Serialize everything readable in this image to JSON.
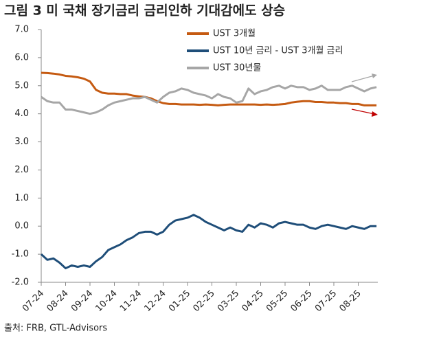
{
  "chart_data": {
    "type": "line",
    "title": "그림 3 미 국채 장기금리 금리인하 기대감에도 상승",
    "source": "출처: FRB, GTL-Advisors",
    "categories": [
      "07-24",
      null,
      null,
      null,
      "08-24",
      null,
      null,
      null,
      "09-24",
      null,
      null,
      null,
      "10-24",
      null,
      null,
      null,
      "11-24",
      null,
      null,
      null,
      "12-24",
      null,
      null,
      null,
      "01-25",
      null,
      null,
      null,
      "02-25",
      null,
      null,
      null,
      "03-25",
      null,
      null,
      null,
      "04-25",
      null,
      null,
      null,
      "05-25",
      null,
      null,
      null,
      "06-25",
      null,
      null,
      null,
      "07-25",
      null,
      null,
      null,
      "08-25",
      null,
      null,
      null
    ],
    "series": [
      {
        "name": "UST 3개월",
        "color": "#c55a11",
        "values": [
          5.46,
          5.45,
          5.43,
          5.4,
          5.35,
          5.33,
          5.3,
          5.25,
          5.15,
          4.85,
          4.75,
          4.72,
          4.72,
          4.7,
          4.7,
          4.65,
          4.62,
          4.6,
          4.55,
          4.45,
          4.38,
          4.35,
          4.35,
          4.33,
          4.33,
          4.33,
          4.32,
          4.33,
          4.32,
          4.3,
          4.32,
          4.33,
          4.33,
          4.33,
          4.33,
          4.33,
          4.32,
          4.33,
          4.32,
          4.33,
          4.35,
          4.4,
          4.43,
          4.45,
          4.45,
          4.42,
          4.42,
          4.4,
          4.4,
          4.38,
          4.38,
          4.35,
          4.35,
          4.3,
          4.3,
          4.3
        ]
      },
      {
        "name": "UST 10년 금리 - UST 3개월 금리",
        "color": "#1f4e79",
        "values": [
          -1.0,
          -1.2,
          -1.15,
          -1.3,
          -1.5,
          -1.4,
          -1.45,
          -1.4,
          -1.45,
          -1.25,
          -1.1,
          -0.85,
          -0.75,
          -0.65,
          -0.5,
          -0.4,
          -0.25,
          -0.2,
          -0.2,
          -0.3,
          -0.2,
          0.05,
          0.2,
          0.25,
          0.3,
          0.4,
          0.3,
          0.15,
          0.05,
          -0.05,
          -0.15,
          -0.05,
          -0.15,
          -0.2,
          0.05,
          -0.05,
          0.1,
          0.05,
          -0.05,
          0.1,
          0.15,
          0.1,
          0.05,
          0.05,
          -0.05,
          -0.1,
          0.0,
          0.05,
          0.0,
          -0.05,
          -0.1,
          0.0,
          -0.05,
          -0.1,
          0.0,
          0.0
        ]
      },
      {
        "name": "UST 30년물",
        "color": "#a6a6a6",
        "values": [
          4.6,
          4.45,
          4.4,
          4.4,
          4.15,
          4.15,
          4.1,
          4.05,
          4.0,
          4.05,
          4.15,
          4.3,
          4.4,
          4.45,
          4.5,
          4.55,
          4.55,
          4.6,
          4.5,
          4.4,
          4.6,
          4.75,
          4.8,
          4.9,
          4.85,
          4.75,
          4.7,
          4.65,
          4.55,
          4.7,
          4.6,
          4.55,
          4.4,
          4.45,
          4.9,
          4.7,
          4.8,
          4.85,
          4.95,
          5.0,
          4.9,
          5.0,
          4.95,
          4.95,
          4.85,
          4.9,
          5.0,
          4.85,
          4.85,
          4.85,
          4.95,
          5.0,
          4.9,
          4.8,
          4.9,
          4.95
        ]
      }
    ],
    "ylim": [
      -2,
      7
    ],
    "yticks": [
      {
        "value": -2,
        "label": "-2.0"
      },
      {
        "value": -1,
        "label": "-1.0"
      },
      {
        "value": 0,
        "label": "0.0"
      },
      {
        "value": 1,
        "label": "1.0"
      },
      {
        "value": 2,
        "label": "2.0"
      },
      {
        "value": 3,
        "label": "3.0"
      },
      {
        "value": 4,
        "label": "4.0"
      },
      {
        "value": 5,
        "label": "5.0"
      },
      {
        "value": 6,
        "label": "6.0"
      },
      {
        "value": 7,
        "label": "7.0"
      }
    ],
    "legend": "upper center"
  }
}
